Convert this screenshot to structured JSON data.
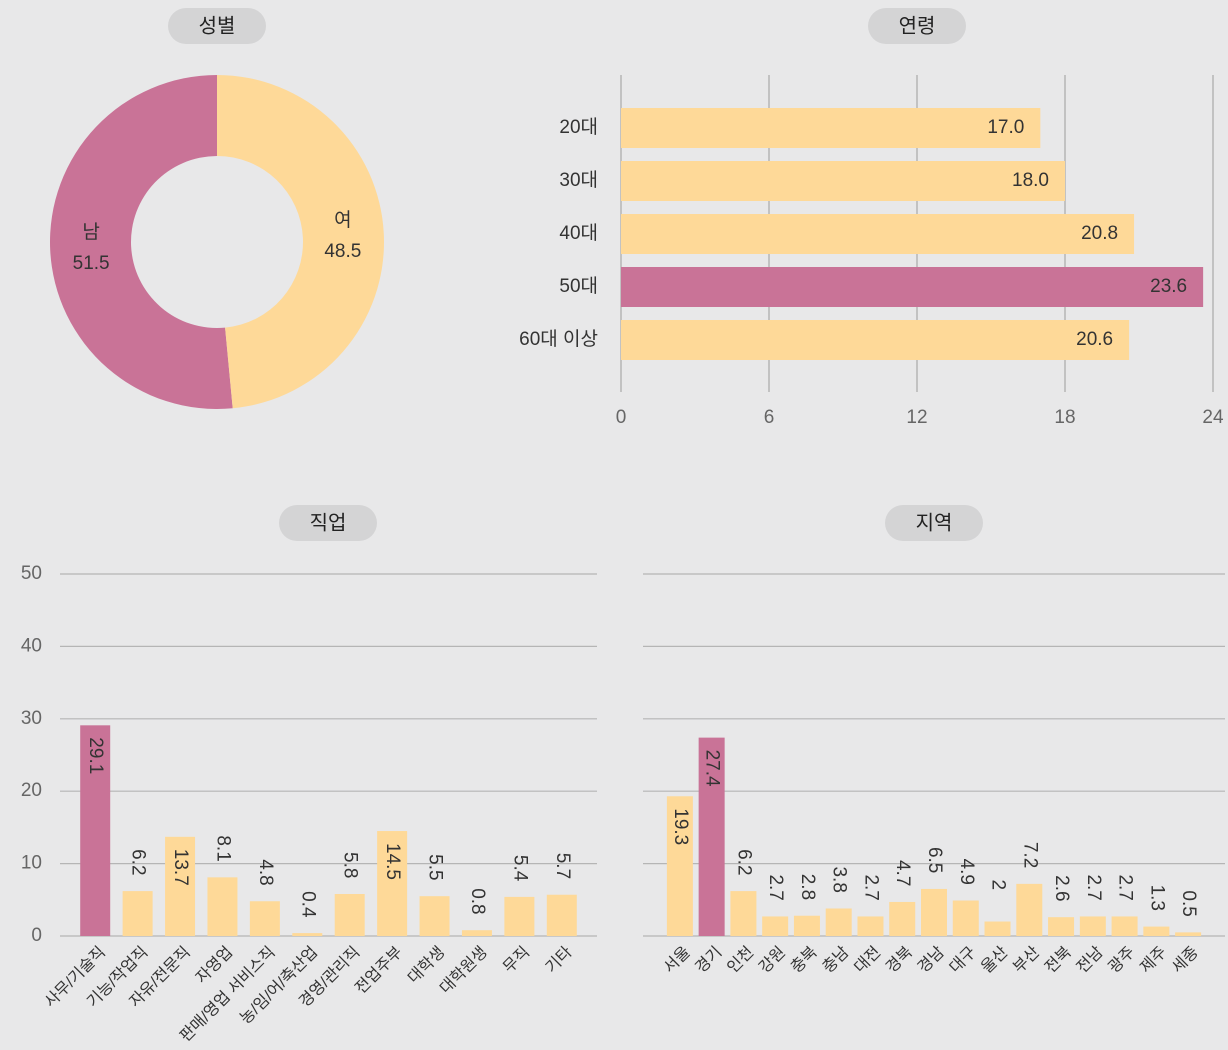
{
  "chart_data": [
    {
      "type": "pie",
      "title": "성별",
      "categories": [
        "남",
        "여"
      ],
      "values": [
        51.5,
        48.5
      ],
      "colors": [
        "#c97397",
        "#fed998"
      ]
    },
    {
      "type": "hbar",
      "title": "연령",
      "categories": [
        "20대",
        "30대",
        "40대",
        "50대",
        "60대 이상"
      ],
      "values": [
        17.0,
        18.0,
        20.8,
        23.6,
        20.6
      ],
      "value_labels": [
        "17.0",
        "18.0",
        "20.8",
        "23.6",
        "20.6"
      ],
      "colors": [
        "#fed998",
        "#fed998",
        "#fed998",
        "#c97397",
        "#fed998"
      ],
      "xlim": [
        0,
        24
      ],
      "xticks": [
        0,
        6,
        12,
        18,
        24
      ],
      "grid": true
    },
    {
      "type": "bar",
      "title": "직업",
      "categories": [
        "사무/기술직",
        "기능/작업직",
        "자유/전문직",
        "자영업",
        "판매/영업 서비스직",
        "농/임/어/축산업",
        "경영/관리직",
        "전업주부",
        "대학생",
        "대학원생",
        "무직",
        "기타"
      ],
      "values": [
        29.1,
        6.2,
        13.7,
        8.1,
        4.8,
        0.4,
        5.8,
        14.5,
        5.5,
        0.8,
        5.4,
        5.7
      ],
      "colors": [
        "#c97397",
        "#fed998",
        "#fed998",
        "#fed998",
        "#fed998",
        "#fed998",
        "#fed998",
        "#fed998",
        "#fed998",
        "#fed998",
        "#fed998",
        "#fed998"
      ],
      "ylim": [
        0,
        50
      ],
      "yticks": [
        0,
        10,
        20,
        30,
        40,
        50
      ],
      "grid": true
    },
    {
      "type": "bar",
      "title": "지역",
      "categories": [
        "서울",
        "경기",
        "인천",
        "강원",
        "충북",
        "충남",
        "대전",
        "경북",
        "경남",
        "대구",
        "울산",
        "부산",
        "전북",
        "전남",
        "광주",
        "제주",
        "세종"
      ],
      "values": [
        19.3,
        27.4,
        6.2,
        2.7,
        2.8,
        3.8,
        2.7,
        4.7,
        6.5,
        4.9,
        2,
        7.2,
        2.6,
        2.7,
        2.7,
        1.3,
        0.5
      ],
      "colors": [
        "#fed998",
        "#c97397",
        "#fed998",
        "#fed998",
        "#fed998",
        "#fed998",
        "#fed998",
        "#fed998",
        "#fed998",
        "#fed998",
        "#fed998",
        "#fed998",
        "#fed998",
        "#fed998",
        "#fed998",
        "#fed998",
        "#fed998"
      ],
      "ylim": [
        0,
        50
      ],
      "yticks": [
        0,
        10,
        20,
        30,
        40,
        50
      ],
      "grid": true,
      "show_tick_labels": false
    }
  ]
}
